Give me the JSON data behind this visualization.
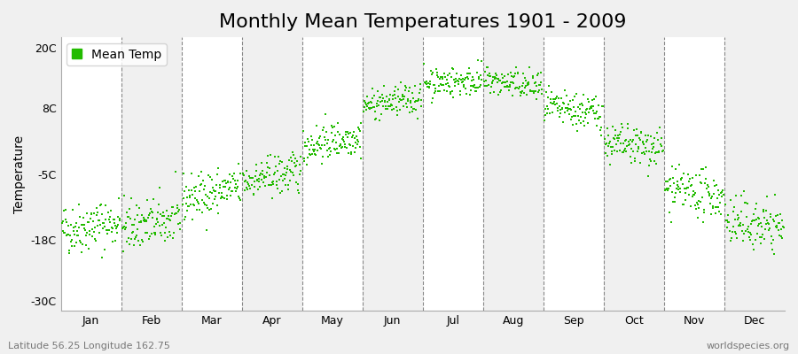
{
  "title": "Monthly Mean Temperatures 1901 - 2009",
  "ylabel": "Temperature",
  "yticks": [
    -30,
    -18,
    -5,
    8,
    20
  ],
  "ytick_labels": [
    "-30C",
    "-18C",
    "-5C",
    "8C",
    "20C"
  ],
  "ylim": [
    -32,
    22
  ],
  "xlim": [
    0,
    12
  ],
  "months": [
    "Jan",
    "Feb",
    "Mar",
    "Apr",
    "May",
    "Jun",
    "Jul",
    "Aug",
    "Sep",
    "Oct",
    "Nov",
    "Dec"
  ],
  "month_centers": [
    0.5,
    1.5,
    2.5,
    3.5,
    4.5,
    5.5,
    6.5,
    7.5,
    8.5,
    9.5,
    10.5,
    11.5
  ],
  "mean_temps_start": [
    -16.0,
    -15.5,
    -10.0,
    -6.5,
    0.5,
    8.5,
    13.0,
    13.5,
    8.0,
    1.0,
    -8.0,
    -14.5
  ],
  "mean_temps_end": [
    -14.5,
    -14.0,
    -7.5,
    -4.5,
    2.5,
    10.0,
    13.5,
    12.0,
    7.0,
    0.0,
    -9.5,
    -15.5
  ],
  "std_temps": [
    2.5,
    2.5,
    2.2,
    2.0,
    1.8,
    1.5,
    1.5,
    1.5,
    1.8,
    2.0,
    2.2,
    2.5
  ],
  "n_years": 109,
  "dot_color": "#22bb00",
  "dot_size": 4,
  "bg_color": "#f0f0f0",
  "band_color_even": "#f0f0f0",
  "band_color_odd": "#ffffff",
  "grid_color": "#888888",
  "legend_label": "Mean Temp",
  "footer_left": "Latitude 56.25 Longitude 162.75",
  "footer_right": "worldspecies.org",
  "title_fontsize": 16,
  "label_fontsize": 10,
  "tick_fontsize": 9,
  "footer_fontsize": 8
}
